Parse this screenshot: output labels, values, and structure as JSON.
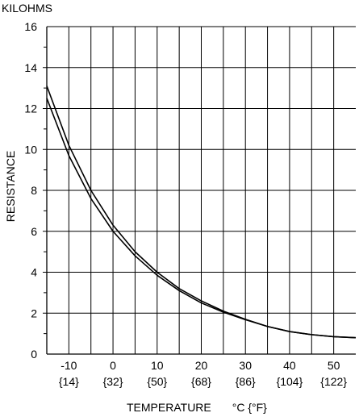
{
  "chart_data": {
    "type": "line",
    "ylabel_unit": "KILOHMS",
    "ylabel": "RESISTANCE",
    "xlabel": "TEMPERATURE",
    "xlabel_units": "°C {°F}",
    "xlim": [
      -15,
      55
    ],
    "ylim": [
      0,
      16
    ],
    "x_grid_step": 5,
    "y_grid_step": 1,
    "grid": true,
    "y_ticks": [
      0,
      2,
      4,
      6,
      8,
      10,
      12,
      14,
      16
    ],
    "x_ticks": [
      {
        "c": -10,
        "c_label": "-10",
        "f_label": "{14}"
      },
      {
        "c": 0,
        "c_label": "0",
        "f_label": "{32}"
      },
      {
        "c": 10,
        "c_label": "10",
        "f_label": "{50}"
      },
      {
        "c": 20,
        "c_label": "20",
        "f_label": "{68}"
      },
      {
        "c": 30,
        "c_label": "30",
        "f_label": "{86}"
      },
      {
        "c": 40,
        "c_label": "40",
        "f_label": "{104}"
      },
      {
        "c": 50,
        "c_label": "50",
        "f_label": "{122}"
      }
    ],
    "series": [
      {
        "x": [
          -15,
          -10,
          -5,
          0,
          5,
          10,
          15,
          20,
          25,
          30,
          35,
          40,
          45,
          50,
          55
        ],
        "y": [
          13.1,
          10.2,
          8.0,
          6.3,
          5.0,
          4.0,
          3.2,
          2.6,
          2.1,
          1.7,
          1.35,
          1.1,
          0.95,
          0.85,
          0.8
        ]
      },
      {
        "x": [
          -15,
          -10,
          -5,
          0,
          5,
          10,
          15,
          20,
          25,
          30,
          35,
          40,
          45,
          50,
          55
        ],
        "y": [
          12.5,
          9.7,
          7.6,
          6.0,
          4.8,
          3.85,
          3.1,
          2.5,
          2.05,
          1.68,
          1.35,
          1.1,
          0.95,
          0.85,
          0.8
        ]
      }
    ]
  }
}
